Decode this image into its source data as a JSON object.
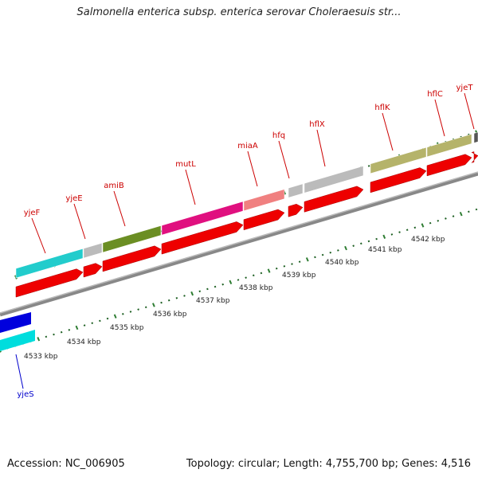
{
  "title": "Salmonella enterica subsp. enterica serovar Choleraesuis str...",
  "footer": {
    "accession": "Accession: NC_006905",
    "summary": "Topology: circular; Length: 4,755,700 bp; Genes: 4,516"
  },
  "ticks": [
    "4533 kbp",
    "4534 kbp",
    "4535 kbp",
    "4536 kbp",
    "4537 kbp",
    "4538 kbp",
    "4539 kbp",
    "4540 kbp",
    "4541 kbp",
    "4542 kbp"
  ],
  "genes": [
    {
      "name": "yjeS",
      "color": "#0000cc",
      "label_color": "#0000cc",
      "strand": "minus"
    },
    {
      "name": "yjeF",
      "color": "#22cccc",
      "label_color": "#cc0000",
      "strand": "plus"
    },
    {
      "name": "yjeE",
      "color": "#bbbbbb",
      "label_color": "#cc0000",
      "strand": "plus"
    },
    {
      "name": "amiB",
      "color": "#6b8e23",
      "label_color": "#cc0000",
      "strand": "plus"
    },
    {
      "name": "mutL",
      "color": "#e0107f",
      "label_color": "#cc0000",
      "strand": "plus"
    },
    {
      "name": "miaA",
      "color": "#f08080",
      "label_color": "#cc0000",
      "strand": "plus"
    },
    {
      "name": "hfq",
      "color": "#bbbbbb",
      "label_color": "#cc0000",
      "strand": "plus"
    },
    {
      "name": "hflX",
      "color": "#bbbbbb",
      "label_color": "#cc0000",
      "strand": "plus"
    },
    {
      "name": "hflK",
      "color": "#b5b36a",
      "label_color": "#cc0000",
      "strand": "plus"
    },
    {
      "name": "hflC",
      "color": "#b5b36a",
      "label_color": "#cc0000",
      "strand": "plus"
    },
    {
      "name": "yjeT",
      "color": "#555555",
      "label_color": "#cc0000",
      "strand": "plus"
    }
  ]
}
